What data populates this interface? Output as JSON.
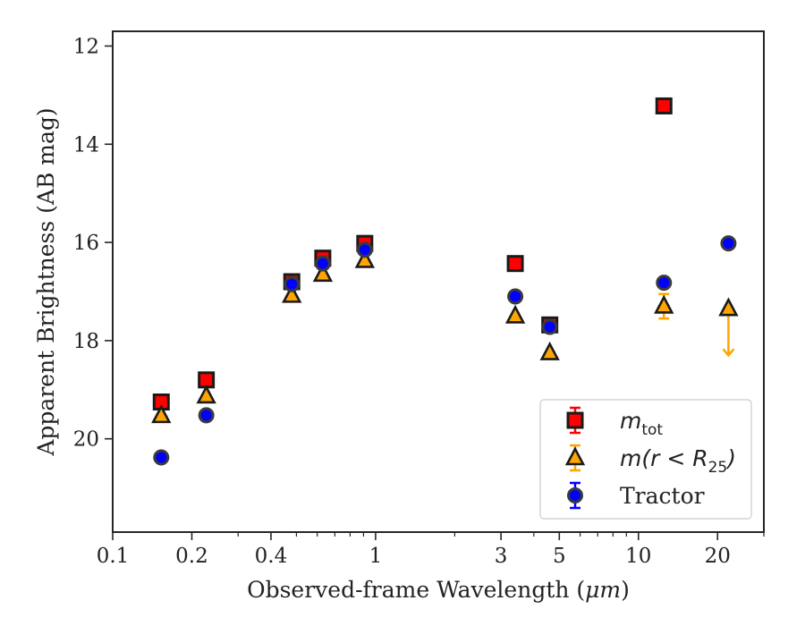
{
  "chart_data": {
    "type": "scatter",
    "xlabel_prefix": "Observed-frame Wavelength (",
    "xlabel_unit": "μm",
    "xlabel_suffix": ")",
    "ylabel": "Apparent Brightness (AB mag)",
    "xscale": "log",
    "xlim": [
      0.1,
      30
    ],
    "ylim": [
      21.9,
      11.7
    ],
    "y_inverted": true,
    "grid": false,
    "legend_position": "lower-right",
    "x_ticks": [
      {
        "value": 0.1,
        "label": "0.1"
      },
      {
        "value": 0.2,
        "label": "0.2"
      },
      {
        "value": 0.4,
        "label": "0.4"
      },
      {
        "value": 1,
        "label": "1"
      },
      {
        "value": 3,
        "label": "3"
      },
      {
        "value": 5,
        "label": "5"
      },
      {
        "value": 10,
        "label": "10"
      },
      {
        "value": 20,
        "label": "20"
      }
    ],
    "y_ticks": [
      {
        "value": 12,
        "label": "12"
      },
      {
        "value": 14,
        "label": "14"
      },
      {
        "value": 16,
        "label": "16"
      },
      {
        "value": 18,
        "label": "18"
      },
      {
        "value": 20,
        "label": "20"
      }
    ],
    "series": [
      {
        "name": "m_tot",
        "legend_label": {
          "base": "m",
          "sub": "tot"
        },
        "marker": "square",
        "color": "#ff0000",
        "edge": "#1a1a1a",
        "errcolor": "#ff0000",
        "points": [
          {
            "x": 0.153,
            "y": 19.25
          },
          {
            "x": 0.227,
            "y": 18.8
          },
          {
            "x": 0.48,
            "y": 16.8
          },
          {
            "x": 0.63,
            "y": 16.32
          },
          {
            "x": 0.91,
            "y": 16.02
          },
          {
            "x": 3.4,
            "y": 16.43
          },
          {
            "x": 4.6,
            "y": 17.68
          },
          {
            "x": 12.5,
            "y": 13.22
          }
        ]
      },
      {
        "name": "m(r < R25)",
        "legend_label": {
          "base": "m(r < R",
          "sub": "25",
          "tail": ")"
        },
        "marker": "triangle",
        "color": "#ffa500",
        "edge": "#1a1a1a",
        "errcolor": "#ffa500",
        "points": [
          {
            "x": 0.153,
            "y": 19.53
          },
          {
            "x": 0.227,
            "y": 19.13
          },
          {
            "x": 0.48,
            "y": 17.08
          },
          {
            "x": 0.63,
            "y": 16.65
          },
          {
            "x": 0.91,
            "y": 16.37
          },
          {
            "x": 3.4,
            "y": 17.5
          },
          {
            "x": 4.6,
            "y": 18.25
          },
          {
            "x": 12.5,
            "y": 17.3,
            "err": 0.25
          },
          {
            "x": 22.0,
            "y": 17.35,
            "upper_limit": true,
            "arrow_to": 18.3
          }
        ]
      },
      {
        "name": "Tractor",
        "legend_label": {
          "base": "Tractor"
        },
        "marker": "circle",
        "color": "#0000ff",
        "edge": "#3a3a3a",
        "errcolor": "#0000ff",
        "points": [
          {
            "x": 0.153,
            "y": 20.38
          },
          {
            "x": 0.227,
            "y": 19.52
          },
          {
            "x": 0.48,
            "y": 16.85
          },
          {
            "x": 0.63,
            "y": 16.43
          },
          {
            "x": 0.91,
            "y": 16.15
          },
          {
            "x": 3.4,
            "y": 17.1
          },
          {
            "x": 4.6,
            "y": 17.72
          },
          {
            "x": 12.5,
            "y": 16.82
          },
          {
            "x": 22.0,
            "y": 16.02
          }
        ]
      }
    ]
  }
}
